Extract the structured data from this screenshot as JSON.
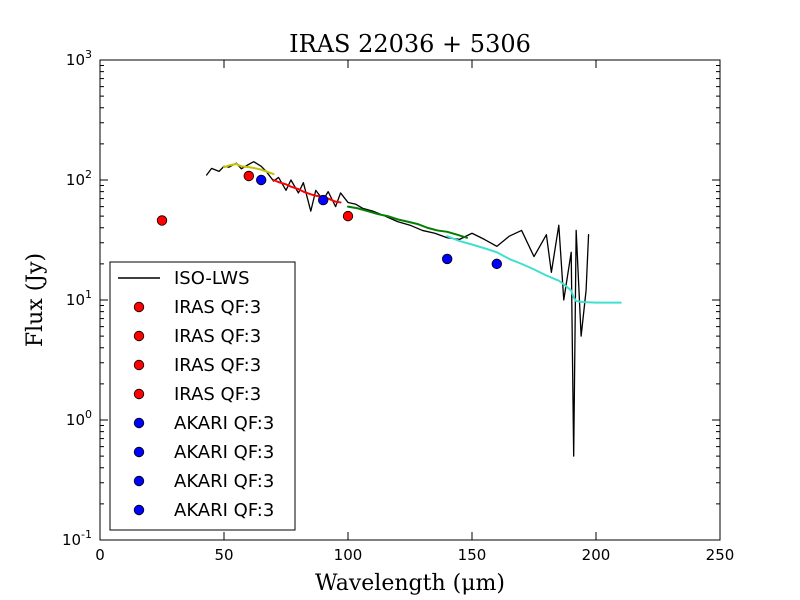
{
  "chart_data": {
    "type": "scatter",
    "title": "IRAS 22036 + 5306",
    "xlabel": "Wavelength (μm)",
    "ylabel": "Flux (Jy)",
    "xlim": [
      0,
      250
    ],
    "ylim": [
      0.1,
      1000
    ],
    "x_scale": "linear",
    "y_scale": "log",
    "x_ticks": [
      0,
      50,
      100,
      150,
      200,
      250
    ],
    "y_ticks": [
      0.1,
      1,
      10,
      100,
      1000
    ],
    "grid": false,
    "legend_position": "lower-left",
    "legend_entries": [
      {
        "label": "ISO-LWS",
        "type": "line",
        "color": "#000000"
      },
      {
        "label": "IRAS QF:3",
        "type": "marker",
        "color": "#ff0000"
      },
      {
        "label": "IRAS QF:3",
        "type": "marker",
        "color": "#ff0000"
      },
      {
        "label": "IRAS QF:3",
        "type": "marker",
        "color": "#ff0000"
      },
      {
        "label": "IRAS QF:3",
        "type": "marker",
        "color": "#ff0000"
      },
      {
        "label": "AKARI QF:3",
        "type": "marker",
        "color": "#0000ff"
      },
      {
        "label": "AKARI QF:3",
        "type": "marker",
        "color": "#0000ff"
      },
      {
        "label": "AKARI QF:3",
        "type": "marker",
        "color": "#0000ff"
      },
      {
        "label": "AKARI QF:3",
        "type": "marker",
        "color": "#0000ff"
      }
    ],
    "series": [
      {
        "name": "ISO-LWS",
        "type": "line",
        "color": "#000000",
        "x": [
          43,
          45,
          48,
          50,
          52,
          55,
          57,
          60,
          62,
          65,
          67,
          70,
          72,
          75,
          77,
          80,
          82,
          85,
          87,
          90,
          92,
          95,
          97,
          100,
          103,
          106,
          110,
          115,
          120,
          125,
          130,
          135,
          140,
          145,
          150,
          155,
          160,
          165,
          170,
          175,
          180,
          182,
          185,
          187,
          190,
          191,
          192,
          194,
          196,
          197
        ],
        "y": [
          110,
          125,
          118,
          130,
          128,
          138,
          124,
          135,
          142,
          130,
          118,
          98,
          105,
          82,
          100,
          78,
          95,
          55,
          82,
          68,
          80,
          60,
          78,
          65,
          63,
          58,
          55,
          50,
          45,
          42,
          38,
          36,
          33,
          32,
          36,
          32,
          28,
          34,
          38,
          23,
          35,
          17,
          42,
          10,
          25,
          0.5,
          38,
          5,
          12,
          35
        ]
      },
      {
        "name": "",
        "type": "line",
        "color": "#c8c000",
        "x": [
          50,
          52,
          55,
          57,
          60,
          62,
          65,
          67,
          70
        ],
        "y": [
          128,
          132,
          136,
          130,
          128,
          126,
          122,
          118,
          112
        ]
      },
      {
        "name": "",
        "type": "line",
        "color": "#ff0000",
        "x": [
          70,
          72,
          75,
          77,
          80,
          82,
          85,
          87,
          90,
          92,
          95,
          97
        ],
        "y": [
          100,
          96,
          92,
          88,
          84,
          80,
          76,
          74,
          72,
          70,
          66,
          65
        ]
      },
      {
        "name": "",
        "type": "line",
        "color": "#008000",
        "x": [
          100,
          104,
          108,
          112,
          116,
          120,
          124,
          128,
          132,
          136,
          140,
          144,
          148
        ],
        "y": [
          60,
          58,
          55,
          52,
          50,
          47,
          45,
          43,
          40,
          38,
          37,
          35,
          33
        ]
      },
      {
        "name": "",
        "type": "line",
        "color": "#40e0d0",
        "x": [
          140,
          145,
          150,
          155,
          160,
          165,
          170,
          175,
          180,
          185,
          188,
          190,
          191,
          192,
          195,
          200,
          205,
          210
        ],
        "y": [
          34,
          31,
          29,
          27,
          25,
          22,
          20,
          18,
          16,
          14.5,
          13,
          12,
          10.5,
          9.8,
          9.6,
          9.5,
          9.5,
          9.5
        ]
      },
      {
        "name": "",
        "type": "scatter",
        "color": "#ff0000",
        "x": [
          25,
          60,
          100
        ],
        "y": [
          46,
          108,
          50
        ]
      },
      {
        "name": "",
        "type": "scatter",
        "color": "#0000ff",
        "x": [
          65,
          90,
          140,
          160
        ],
        "y": [
          100,
          68,
          22,
          20
        ]
      }
    ]
  }
}
